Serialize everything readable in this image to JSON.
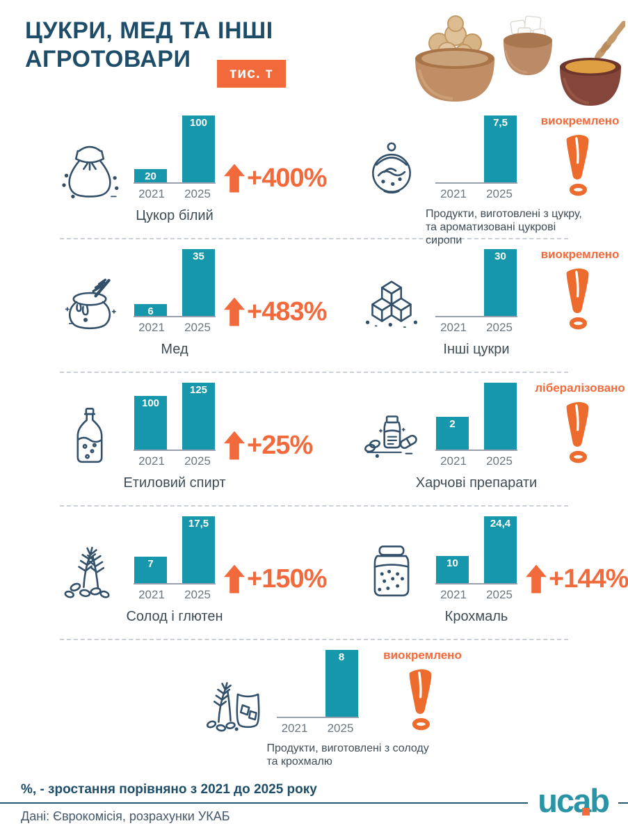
{
  "header": {
    "title_line1": "ЦУКРИ, МЕД ТА ІНШІ",
    "title_line2": "АГРОТОВАРИ",
    "unit_badge": "тис. т"
  },
  "colors": {
    "bar_teal": "#1697ac",
    "accent_orange": "#f26a3b",
    "navy": "#1d4d68",
    "label_gray": "#3d4b55"
  },
  "chart_data": {
    "type": "bar",
    "title": "ЦУКРИ, МЕД ТА ІНШІ АГРОТОВАРИ",
    "unit": "тис. т",
    "x": [
      "2021",
      "2025"
    ],
    "legend_note": "%, - зростання порівняно з 2021 до 2025 року",
    "charts": [
      {
        "label": "Цукор білий",
        "icon": "sugar-sack-icon",
        "bars": [
          {
            "year": "2021",
            "value": "20",
            "ratio": 0.2
          },
          {
            "year": "2025",
            "value": "100",
            "ratio": 1.0
          }
        ],
        "annotation": {
          "kind": "growth",
          "text": "+400%"
        }
      },
      {
        "label": "Продукти, виготовлені з цукру, та ароматизовані цукрові сиропи",
        "icon": "sugar-bowl-icon",
        "bars": [
          {
            "year": "2021",
            "value": null,
            "ratio": 0
          },
          {
            "year": "2025",
            "value": "7,5",
            "ratio": 1.0
          }
        ],
        "annotation": {
          "kind": "note",
          "text": "виокремлено"
        }
      },
      {
        "label": "Мед",
        "icon": "honey-pot-icon",
        "bars": [
          {
            "year": "2021",
            "value": "6",
            "ratio": 0.18
          },
          {
            "year": "2025",
            "value": "35",
            "ratio": 1.0
          }
        ],
        "annotation": {
          "kind": "growth",
          "text": "+483%"
        }
      },
      {
        "label": "Інші цукри",
        "icon": "sugar-cubes-icon",
        "bars": [
          {
            "year": "2021",
            "value": null,
            "ratio": 0
          },
          {
            "year": "2025",
            "value": "30",
            "ratio": 1.0
          }
        ],
        "annotation": {
          "kind": "note",
          "text": "виокремлено"
        }
      },
      {
        "label": "Етиловий спирт",
        "icon": "bottle-icon",
        "bars": [
          {
            "year": "2021",
            "value": "100",
            "ratio": 0.8
          },
          {
            "year": "2025",
            "value": "125",
            "ratio": 1.0
          }
        ],
        "annotation": {
          "kind": "growth",
          "text": "+25%"
        }
      },
      {
        "label": "Харчові препарати",
        "icon": "food-preparations-icon",
        "bars": [
          {
            "year": "2021",
            "value": "2",
            "ratio": 0.49
          },
          {
            "year": "2025",
            "value": null,
            "ratio": 1.0
          }
        ],
        "annotation": {
          "kind": "note",
          "text": "лібералізовано"
        }
      },
      {
        "label": "Солод і глютен",
        "icon": "malt-gluten-icon",
        "bars": [
          {
            "year": "2021",
            "value": "7",
            "ratio": 0.4
          },
          {
            "year": "2025",
            "value": "17,5",
            "ratio": 1.0
          }
        ],
        "annotation": {
          "kind": "growth",
          "text": "+150%"
        }
      },
      {
        "label": "Крохмаль",
        "icon": "starch-jar-icon",
        "bars": [
          {
            "year": "2021",
            "value": "10",
            "ratio": 0.41
          },
          {
            "year": "2025",
            "value": "24,4",
            "ratio": 1.0
          }
        ],
        "annotation": {
          "kind": "growth",
          "text": "+144%"
        }
      },
      {
        "label": "Продукти, виготовлені з солоду та крохмалю",
        "icon": "malt-starch-products-icon",
        "bars": [
          {
            "year": "2021",
            "value": null,
            "ratio": 0
          },
          {
            "year": "2025",
            "value": "8",
            "ratio": 1.0
          }
        ],
        "annotation": {
          "kind": "note",
          "text": "виокремлено"
        }
      }
    ]
  },
  "footer": {
    "note_bold": "%, - зростання порівняно з 2021 до 2025 року",
    "source": "Дані: Єврокомісія, розрахунки УКАБ",
    "logo_text": "ucab"
  }
}
